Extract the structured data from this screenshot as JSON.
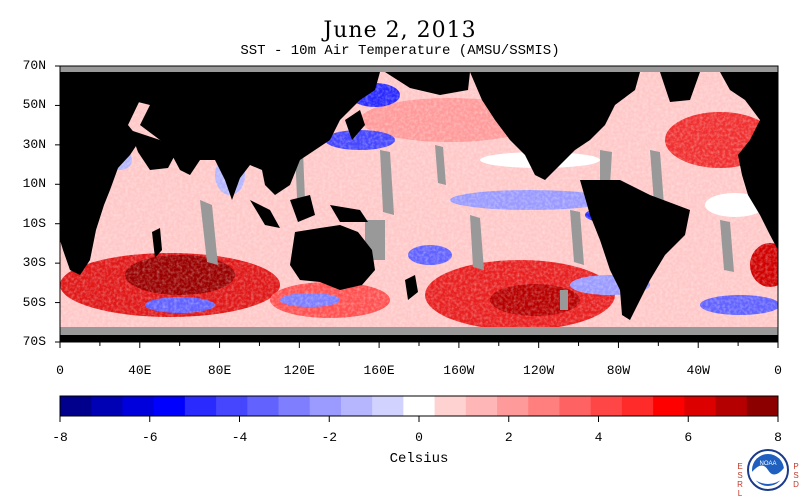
{
  "title": "June 2, 2013",
  "subtitle": "SST - 10m Air Temperature (AMSU/SSMIS)",
  "lat_labels": [
    "70N",
    "50N",
    "30N",
    "10N",
    "10S",
    "30S",
    "50S",
    "70S"
  ],
  "lat_values": [
    70,
    50,
    30,
    10,
    -10,
    -30,
    -50,
    -70
  ],
  "lon_labels": [
    "0",
    "40E",
    "80E",
    "120E",
    "160E",
    "160W",
    "120W",
    "80W",
    "40W",
    "0"
  ],
  "colorbar": {
    "min": -8,
    "max": 8,
    "ticks": [
      "-8",
      "-6",
      "-4",
      "-2",
      "0",
      "2",
      "4",
      "6",
      "8"
    ],
    "units": "Celsius",
    "colors": [
      "#00008c",
      "#0000b4",
      "#0000dc",
      "#0000ff",
      "#2a2aff",
      "#4646ff",
      "#6262ff",
      "#7e7eff",
      "#9a9aff",
      "#b6b6ff",
      "#d2d2ff",
      "#ffffff",
      "#ffd2d2",
      "#ffb6b6",
      "#ff9a9a",
      "#ff7e7e",
      "#ff6262",
      "#ff4646",
      "#ff2a2a",
      "#ff0000",
      "#dc0000",
      "#b40000",
      "#8c0000"
    ]
  },
  "colors": {
    "land": "#000000",
    "missing": "#999999",
    "ocean_base": "#ffc8c8"
  },
  "logo": {
    "left_letters": "ESRL",
    "right_letters": "PSD",
    "center": "NOAA"
  }
}
